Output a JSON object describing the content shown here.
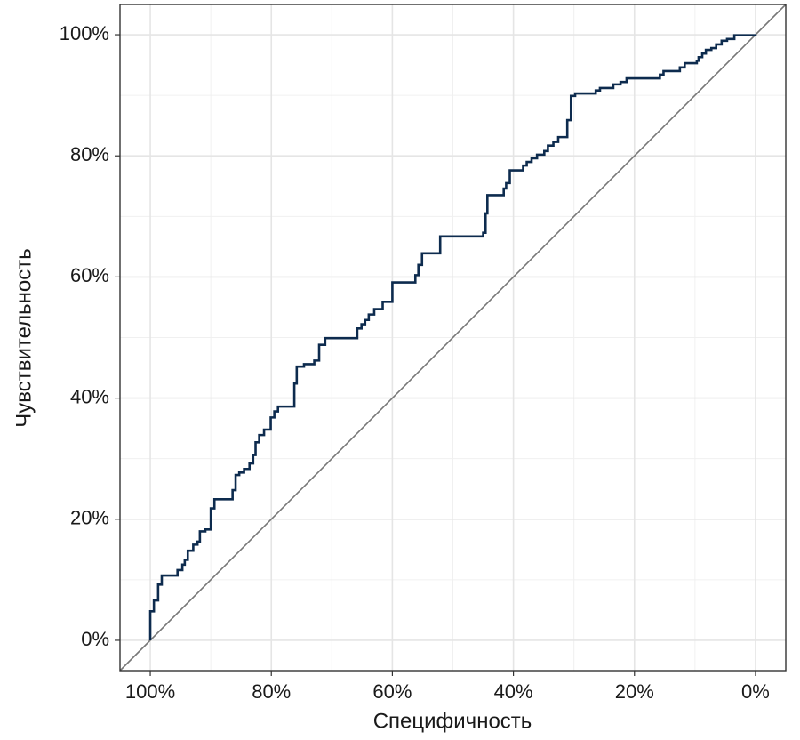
{
  "chart_data": {
    "type": "line",
    "x_label": "Специфичность",
    "y_label": "Чувствительность",
    "xlim": [
      105,
      -5
    ],
    "ylim": [
      -5,
      105
    ],
    "xticks": [
      {
        "value": 100,
        "label": "100%"
      },
      {
        "value": 80,
        "label": "80%"
      },
      {
        "value": 60,
        "label": "60%"
      },
      {
        "value": 40,
        "label": "40%"
      },
      {
        "value": 20,
        "label": "20%"
      },
      {
        "value": 0,
        "label": "0%"
      }
    ],
    "yticks": [
      {
        "value": 0,
        "label": "0%"
      },
      {
        "value": 20,
        "label": "20%"
      },
      {
        "value": 40,
        "label": "40%"
      },
      {
        "value": 60,
        "label": "60%"
      },
      {
        "value": 80,
        "label": "80%"
      },
      {
        "value": 100,
        "label": "100%"
      }
    ],
    "grid": true,
    "step": true,
    "series": [
      {
        "color": "#0d2b4e",
        "x": [
          100,
          100,
          99.4,
          98.7,
          98.1,
          95.5,
          94.7,
          94.3,
          93.8,
          92.9,
          92.2,
          91.8,
          90.9,
          90.0,
          89.4,
          86.4,
          85.9,
          85.3,
          84.5,
          83.6,
          83.0,
          82.6,
          82.0,
          81.2,
          80.1,
          79.5,
          78.9,
          76.2,
          75.8,
          74.6,
          72.9,
          72.1,
          71.1,
          65.8,
          65.1,
          64.5,
          63.9,
          63.0,
          61.6,
          60.0,
          56.2,
          55.7,
          55.1,
          52.1,
          45.0,
          44.6,
          44.3,
          41.6,
          41.2,
          40.6,
          38.4,
          37.8,
          37.0,
          36.1,
          34.9,
          34.3,
          33.4,
          32.6,
          31.1,
          30.5,
          29.8,
          26.4,
          25.7,
          23.5,
          22.3,
          21.3,
          15.8,
          15.2,
          12.5,
          11.7,
          9.7,
          9.4,
          8.8,
          8.2,
          7.3,
          6.5,
          5.6,
          4.7,
          3.5,
          0
        ],
        "values": [
          0,
          4.8,
          6.6,
          9.2,
          10.7,
          11.6,
          12.5,
          13.3,
          14.8,
          15.8,
          16.3,
          18.0,
          18.3,
          21.8,
          23.3,
          24.8,
          27.3,
          27.7,
          28.3,
          29.2,
          30.6,
          32.7,
          33.9,
          34.8,
          36.8,
          37.8,
          38.6,
          42.4,
          45.2,
          45.6,
          46.2,
          48.8,
          49.9,
          51.5,
          52.2,
          52.9,
          53.8,
          54.7,
          55.9,
          59.1,
          60.3,
          62.0,
          63.9,
          66.7,
          67.3,
          70.5,
          73.5,
          74.6,
          75.5,
          77.6,
          78.4,
          79.0,
          79.6,
          80.2,
          80.8,
          81.7,
          82.3,
          83.1,
          85.9,
          89.9,
          90.3,
          90.8,
          91.2,
          91.8,
          92.2,
          92.8,
          93.4,
          94.0,
          94.6,
          95.3,
          95.7,
          96.3,
          96.9,
          97.5,
          97.8,
          98.4,
          99.0,
          99.3,
          99.9,
          100
        ]
      }
    ]
  }
}
